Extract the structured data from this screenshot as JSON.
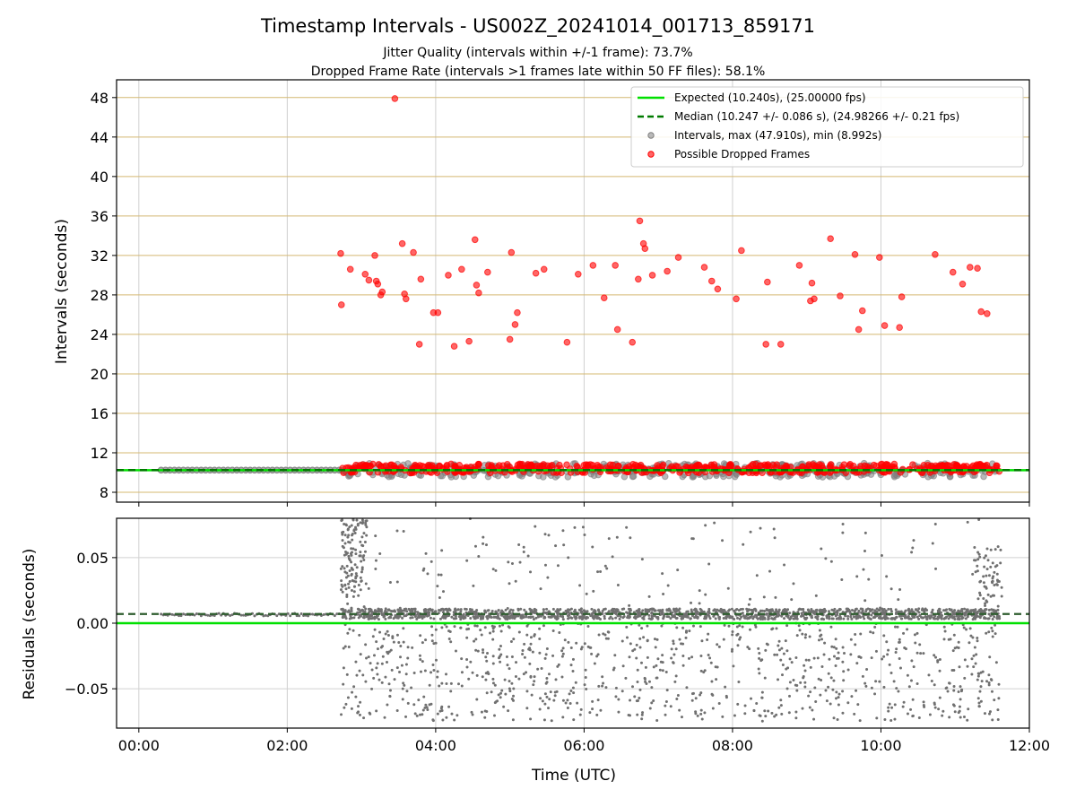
{
  "chart_data": [
    {
      "type": "scatter",
      "panel": "intervals",
      "title": "Timestamp Intervals - US002Z_20241014_001713_859171",
      "subtitle_1": "Jitter Quality (intervals within +/-1 frame): 73.7%",
      "subtitle_2": "Dropped Frame Rate (intervals >1 frames late within 50 FF files): 58.1%",
      "ylabel": "Intervals (seconds)",
      "xlim": [
        -0.3,
        12.0
      ],
      "ylim": [
        7.0,
        49.8
      ],
      "yticks": [
        8,
        12,
        16,
        20,
        24,
        28,
        32,
        36,
        40,
        44,
        48
      ],
      "ytick_labels": [
        "8",
        "12",
        "16",
        "20",
        "24",
        "28",
        "32",
        "36",
        "40",
        "44",
        "48"
      ],
      "xticks": [
        0,
        2,
        4,
        6,
        8,
        10,
        12
      ],
      "grid": true,
      "legend_position": "top-right",
      "legend": [
        "Expected (10.240s), (25.00000 fps)",
        "Median (10.247 +/- 0.086 s), (24.98266 +/- 0.21 fps)",
        "Intervals, max (47.910s), min (8.992s)",
        "Possible Dropped Frames"
      ],
      "expected_interval": 10.24,
      "median_interval": 10.247,
      "max_interval": 47.91,
      "min_interval": 8.992,
      "colors": {
        "expected": "#00e000",
        "median": "#007a00",
        "intervals": "#808080",
        "dropped": "#ff0000",
        "y_grid": "#d4b870"
      },
      "dropped_outliers": [
        [
          2.72,
          32.2
        ],
        [
          2.73,
          27.0
        ],
        [
          2.85,
          30.6
        ],
        [
          3.05,
          30.1
        ],
        [
          3.1,
          29.5
        ],
        [
          3.18,
          32.0
        ],
        [
          3.2,
          29.4
        ],
        [
          3.22,
          29.1
        ],
        [
          3.26,
          28.0
        ],
        [
          3.28,
          28.3
        ],
        [
          3.45,
          47.9
        ],
        [
          3.55,
          33.2
        ],
        [
          3.58,
          28.1
        ],
        [
          3.6,
          27.6
        ],
        [
          3.7,
          32.3
        ],
        [
          3.78,
          23.0
        ],
        [
          3.8,
          29.6
        ],
        [
          3.97,
          26.2
        ],
        [
          4.03,
          26.2
        ],
        [
          4.17,
          30.0
        ],
        [
          4.25,
          22.8
        ],
        [
          4.35,
          30.6
        ],
        [
          4.45,
          23.3
        ],
        [
          4.53,
          33.6
        ],
        [
          4.55,
          29.0
        ],
        [
          4.58,
          28.2
        ],
        [
          4.7,
          30.3
        ],
        [
          5.0,
          23.5
        ],
        [
          5.02,
          32.3
        ],
        [
          5.07,
          25.0
        ],
        [
          5.1,
          26.2
        ],
        [
          5.35,
          30.2
        ],
        [
          5.46,
          30.6
        ],
        [
          5.77,
          23.2
        ],
        [
          5.92,
          30.1
        ],
        [
          6.12,
          31.0
        ],
        [
          6.27,
          27.7
        ],
        [
          6.42,
          31.0
        ],
        [
          6.45,
          24.5
        ],
        [
          6.65,
          23.2
        ],
        [
          6.73,
          29.6
        ],
        [
          6.75,
          35.5
        ],
        [
          6.8,
          33.2
        ],
        [
          6.82,
          32.7
        ],
        [
          6.92,
          30.0
        ],
        [
          7.12,
          30.4
        ],
        [
          7.27,
          31.8
        ],
        [
          7.62,
          30.8
        ],
        [
          7.72,
          29.4
        ],
        [
          7.8,
          28.6
        ],
        [
          8.05,
          27.6
        ],
        [
          8.12,
          32.5
        ],
        [
          8.45,
          23.0
        ],
        [
          8.47,
          29.3
        ],
        [
          8.65,
          23.0
        ],
        [
          8.9,
          31.0
        ],
        [
          9.05,
          27.4
        ],
        [
          9.07,
          29.2
        ],
        [
          9.1,
          27.6
        ],
        [
          9.32,
          33.7
        ],
        [
          9.45,
          27.9
        ],
        [
          9.65,
          32.1
        ],
        [
          9.7,
          24.5
        ],
        [
          9.75,
          26.4
        ],
        [
          9.98,
          31.8
        ],
        [
          10.05,
          24.9
        ],
        [
          10.25,
          24.7
        ],
        [
          10.28,
          27.8
        ],
        [
          10.73,
          32.1
        ],
        [
          10.97,
          30.3
        ],
        [
          11.1,
          29.1
        ],
        [
          11.2,
          30.8
        ],
        [
          11.3,
          30.7
        ],
        [
          11.35,
          26.3
        ],
        [
          11.43,
          26.1
        ]
      ]
    },
    {
      "type": "scatter",
      "panel": "residuals",
      "ylabel": "Residuals (seconds)",
      "xlabel": "Time (UTC)",
      "xlim": [
        -0.3,
        12.0
      ],
      "ylim": [
        -0.08,
        0.08
      ],
      "yticks": [
        -0.05,
        0.0,
        0.05
      ],
      "ytick_labels": [
        "−0.05",
        "0.00",
        "0.05"
      ],
      "xticks": [
        0,
        2,
        4,
        6,
        8,
        10,
        12
      ],
      "xtick_labels": [
        "00:00",
        "02:00",
        "04:00",
        "06:00",
        "08:00",
        "10:00",
        "12:00"
      ],
      "grid": true,
      "expected_residual": 0.0,
      "median_residual": 0.007,
      "colors": {
        "points": "#707070",
        "expected": "#00e000",
        "median": "#2e5d2e"
      }
    }
  ]
}
